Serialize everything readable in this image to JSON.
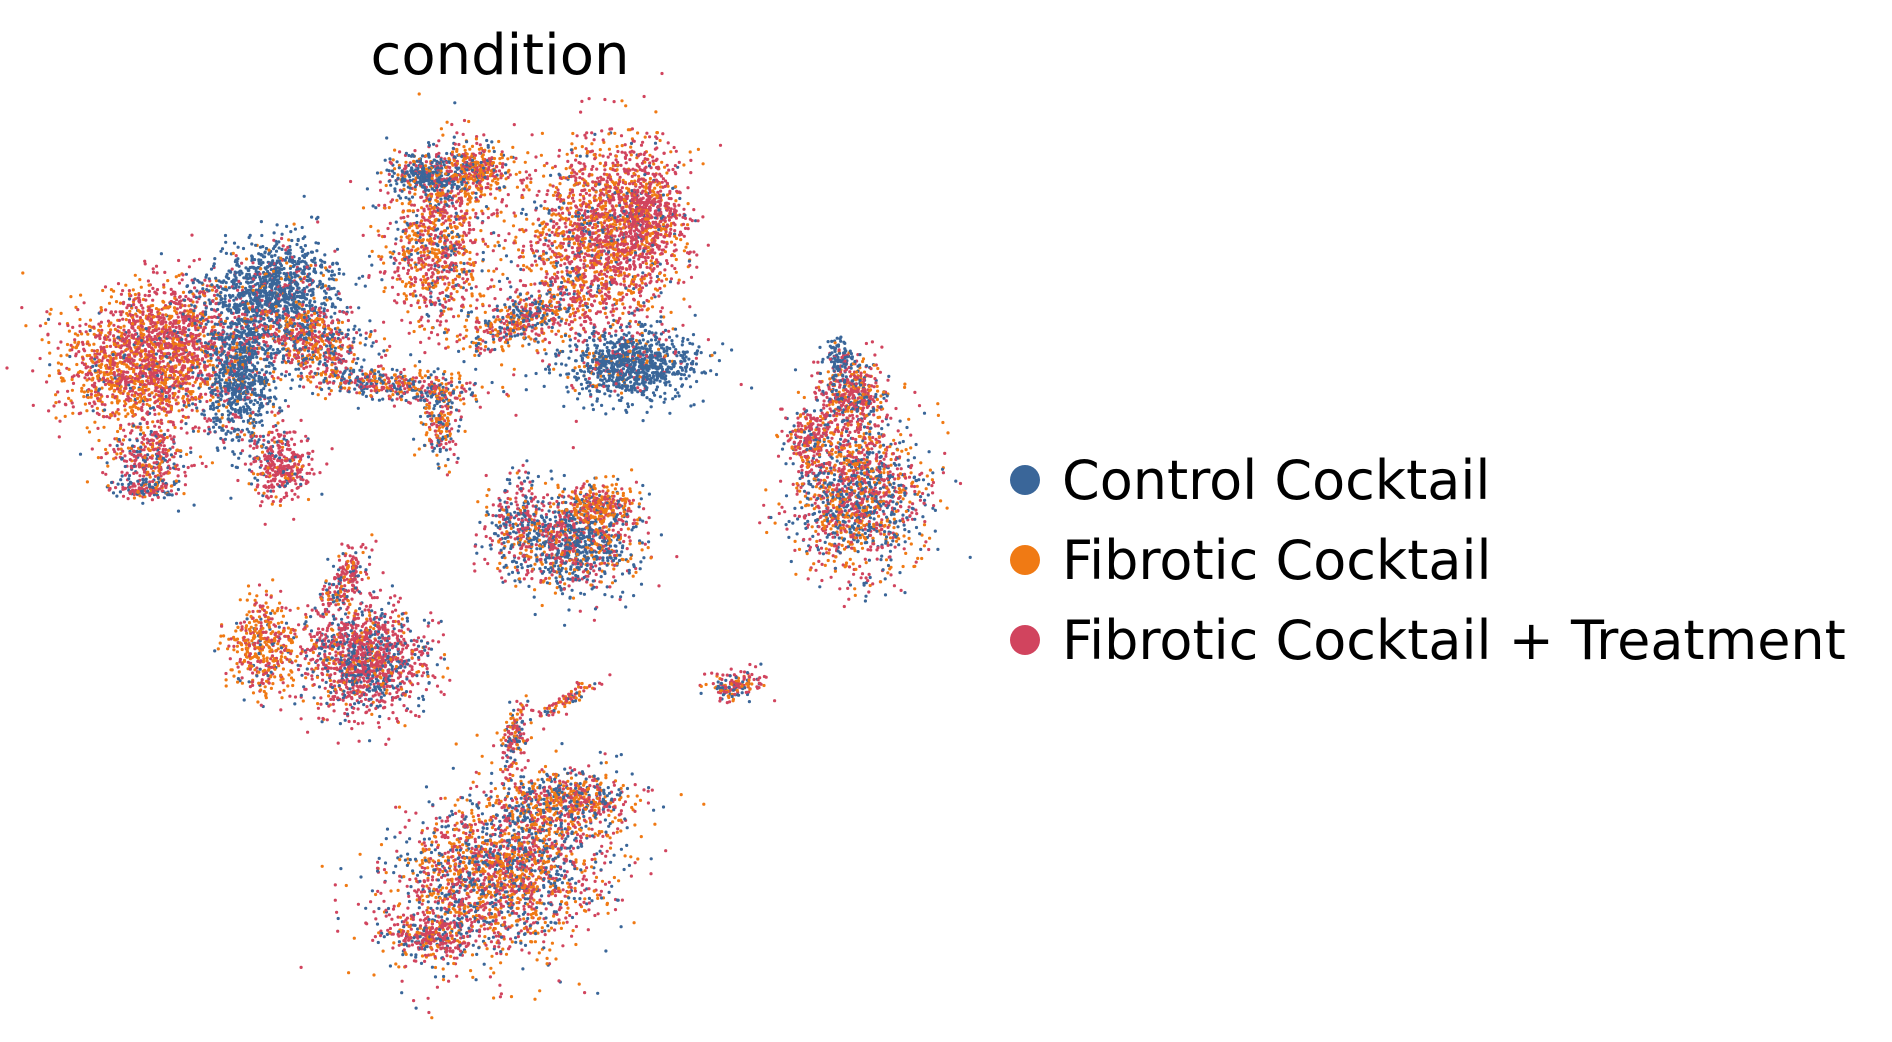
{
  "chart_data": {
    "type": "scatter",
    "title": "condition",
    "xlabel": "",
    "ylabel": "",
    "axes_visible": false,
    "grid": false,
    "legend_position": "right",
    "series": [
      {
        "name": "Control Cocktail",
        "color": "#3a6699"
      },
      {
        "name": "Fibrotic Cocktail",
        "color": "#f07a14"
      },
      {
        "name": "Fibrotic Cocktail + Treatment",
        "color": "#d1445e"
      }
    ]
  }
}
